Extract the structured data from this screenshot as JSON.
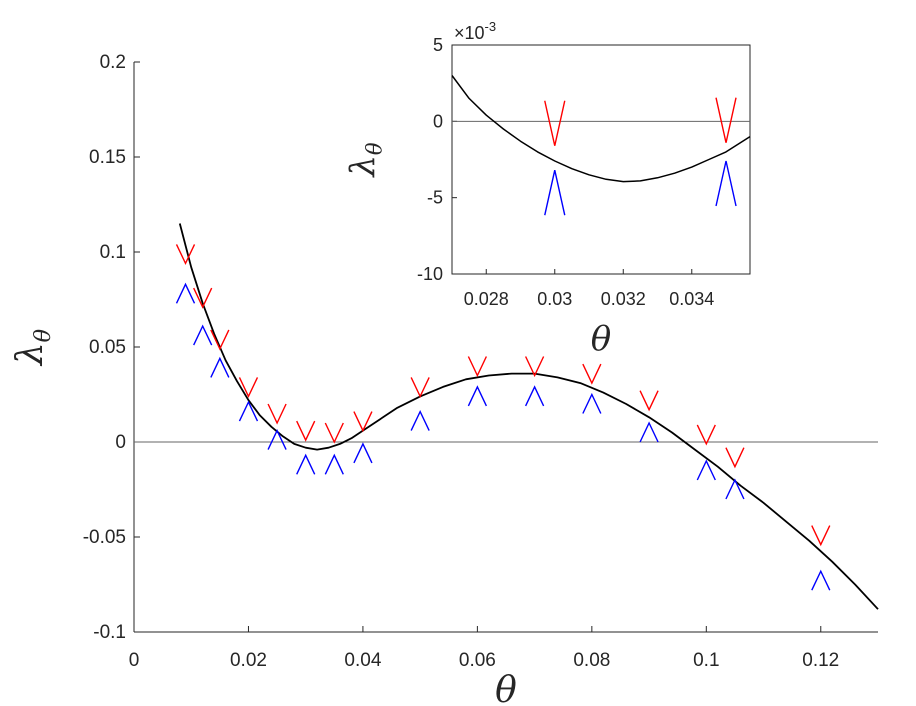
{
  "chart_data": [
    {
      "type": "line",
      "xlabel": "θ",
      "ylabel": "λ",
      "ylabel_sub": "θ",
      "xlim": [
        0,
        0.13
      ],
      "ylim": [
        -0.1,
        0.2
      ],
      "xticks": [
        0,
        0.02,
        0.04,
        0.06,
        0.08,
        0.1,
        0.12
      ],
      "xtick_labels": [
        "0",
        "0.02",
        "0.04",
        "0.06",
        "0.08",
        "0.1",
        "0.12"
      ],
      "yticks": [
        -0.1,
        -0.05,
        0,
        0.05,
        0.1,
        0.15,
        0.2
      ],
      "ytick_labels": [
        "-0.1",
        "-0.05",
        "0",
        "0.05",
        "0.1",
        "0.15",
        "0.2"
      ],
      "zero_line": 0,
      "curve": {
        "x": [
          0.008,
          0.01,
          0.012,
          0.014,
          0.016,
          0.018,
          0.02,
          0.022,
          0.024,
          0.026,
          0.028,
          0.03,
          0.032,
          0.034,
          0.036,
          0.038,
          0.04,
          0.043,
          0.046,
          0.05,
          0.054,
          0.058,
          0.062,
          0.066,
          0.07,
          0.074,
          0.078,
          0.082,
          0.086,
          0.09,
          0.094,
          0.098,
          0.102,
          0.106,
          0.11,
          0.114,
          0.118,
          0.122,
          0.126,
          0.13
        ],
        "y": [
          0.115,
          0.092,
          0.073,
          0.057,
          0.043,
          0.032,
          0.022,
          0.014,
          0.008,
          0.003,
          -0.001,
          -0.003,
          -0.004,
          -0.003,
          -0.001,
          0.002,
          0.006,
          0.012,
          0.018,
          0.024,
          0.029,
          0.033,
          0.035,
          0.036,
          0.036,
          0.034,
          0.031,
          0.026,
          0.02,
          0.013,
          0.005,
          -0.004,
          -0.013,
          -0.023,
          -0.032,
          -0.042,
          -0.052,
          -0.063,
          -0.075,
          -0.088
        ]
      },
      "upper_markers": {
        "x": [
          0.009,
          0.012,
          0.015,
          0.02,
          0.025,
          0.03,
          0.035,
          0.04,
          0.05,
          0.06,
          0.07,
          0.08,
          0.09,
          0.1,
          0.105,
          0.12
        ],
        "y": [
          0.094,
          0.071,
          0.049,
          0.024,
          0.01,
          0.001,
          0.0,
          0.006,
          0.024,
          0.035,
          0.035,
          0.031,
          0.017,
          -0.001,
          -0.013,
          -0.054
        ]
      },
      "lower_markers": {
        "x": [
          0.009,
          0.012,
          0.015,
          0.02,
          0.025,
          0.03,
          0.035,
          0.04,
          0.05,
          0.06,
          0.07,
          0.08,
          0.09,
          0.1,
          0.105,
          0.12
        ],
        "y": [
          0.083,
          0.061,
          0.044,
          0.021,
          0.006,
          -0.007,
          -0.007,
          -0.001,
          0.016,
          0.029,
          0.029,
          0.025,
          0.01,
          -0.01,
          -0.02,
          -0.068
        ]
      },
      "colors": {
        "curve": "#000000",
        "upper": "#ff0000",
        "lower": "#0000ff",
        "zero_line": "#666666"
      }
    },
    {
      "type": "line",
      "inset": true,
      "xlabel": "θ",
      "ylabel": "λ",
      "ylabel_sub": "θ",
      "y_exponent": "×10",
      "y_exponent_power": "-3",
      "xlim": [
        0.027,
        0.0357
      ],
      "ylim": [
        -10,
        5
      ],
      "xticks": [
        0.028,
        0.03,
        0.032,
        0.034
      ],
      "xtick_labels": [
        "0.028",
        "0.03",
        "0.032",
        "0.034"
      ],
      "yticks": [
        -10,
        -5,
        0,
        5
      ],
      "ytick_labels": [
        "-10",
        "-5",
        "0",
        "5"
      ],
      "zero_line": 0,
      "curve": {
        "x": [
          0.027,
          0.0275,
          0.028,
          0.0285,
          0.029,
          0.0295,
          0.03,
          0.0305,
          0.031,
          0.0315,
          0.032,
          0.0325,
          0.033,
          0.0335,
          0.034,
          0.0345,
          0.035,
          0.0357
        ],
        "y": [
          3.0,
          1.5,
          0.4,
          -0.5,
          -1.3,
          -2.0,
          -2.6,
          -3.1,
          -3.5,
          -3.8,
          -3.95,
          -3.9,
          -3.7,
          -3.4,
          -3.0,
          -2.5,
          -2.0,
          -1.0
        ]
      },
      "upper_markers": {
        "x": [
          0.03,
          0.035
        ],
        "y": [
          -1.6,
          -1.4
        ]
      },
      "lower_markers": {
        "x": [
          0.03,
          0.035
        ],
        "y": [
          -3.2,
          -2.6
        ]
      },
      "colors": {
        "curve": "#000000",
        "upper": "#ff0000",
        "lower": "#0000ff",
        "zero_line": "#666666"
      }
    }
  ]
}
